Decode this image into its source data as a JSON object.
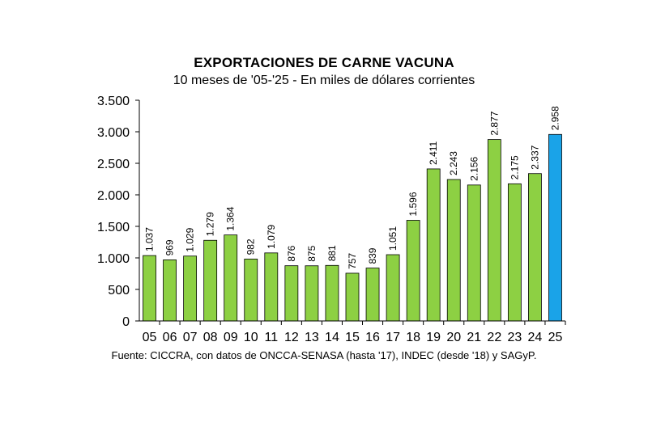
{
  "chart_data": {
    "type": "bar",
    "title": "EXPORTACIONES DE CARNE VACUNA",
    "subtitle": "10 meses de '05-'25 - En miles de dólares corrientes",
    "source": "Fuente: CICCRA, con datos de ONCCA-SENASA (hasta '17), INDEC (desde '18) y SAGyP.",
    "categories": [
      "05",
      "06",
      "07",
      "08",
      "09",
      "10",
      "11",
      "12",
      "13",
      "14",
      "15",
      "16",
      "17",
      "18",
      "19",
      "20",
      "21",
      "22",
      "23",
      "24",
      "25"
    ],
    "values": [
      1037,
      969,
      1029,
      1279,
      1364,
      982,
      1079,
      876,
      875,
      881,
      757,
      839,
      1051,
      1596,
      2411,
      2243,
      2156,
      2877,
      2175,
      2337,
      2958
    ],
    "value_labels": [
      "1.037",
      "969",
      "1.029",
      "1.279",
      "1.364",
      "982",
      "1.079",
      "876",
      "875",
      "881",
      "757",
      "839",
      "1.051",
      "1.596",
      "2.411",
      "2.243",
      "2.156",
      "2.877",
      "2.175",
      "2.337",
      "2.958"
    ],
    "ylim": [
      0,
      3500
    ],
    "yticks": [
      0,
      500,
      1000,
      1500,
      2000,
      2500,
      3000,
      3500
    ],
    "ytick_labels": [
      "0",
      "500",
      "1.000",
      "1.500",
      "2.000",
      "2.500",
      "3.000",
      "3.500"
    ],
    "grid": false,
    "colors": {
      "bar": "#8dd043",
      "bar_highlight": "#1aa3e8",
      "bar_stroke": "#000000"
    },
    "highlight_index": 20
  }
}
